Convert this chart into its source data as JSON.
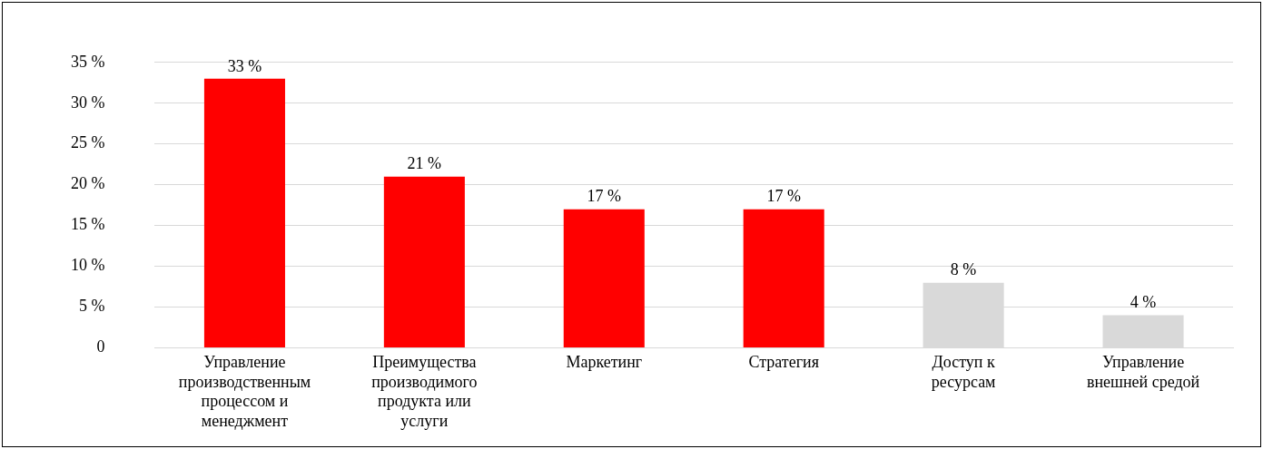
{
  "chart_data": {
    "type": "bar",
    "categories": [
      "Управление производственным процессом и менеджмент",
      "Преимущества производимого продукта или услуги",
      "Маркетинг",
      "Стратегия",
      "Доступ к ресурсам",
      "Управление внешней средой"
    ],
    "values": [
      33,
      21,
      17,
      17,
      8,
      4
    ],
    "colors": [
      "#ff0000",
      "#ff0000",
      "#ff0000",
      "#ff0000",
      "#d9d9d9",
      "#d9d9d9"
    ],
    "value_labels": [
      "33 %",
      "21 %",
      "17 %",
      "17 %",
      "8 %",
      "4 %"
    ],
    "ylim": [
      0,
      35
    ],
    "yticks": [
      {
        "value": 0,
        "label": "0"
      },
      {
        "value": 5,
        "label": "5 %"
      },
      {
        "value": 10,
        "label": "10 %"
      },
      {
        "value": 15,
        "label": "15 %"
      },
      {
        "value": 20,
        "label": "20 %"
      },
      {
        "value": 25,
        "label": "25 %"
      },
      {
        "value": 30,
        "label": "30 %"
      },
      {
        "value": 35,
        "label": "35 %"
      }
    ],
    "grid": "y",
    "legend": false
  }
}
